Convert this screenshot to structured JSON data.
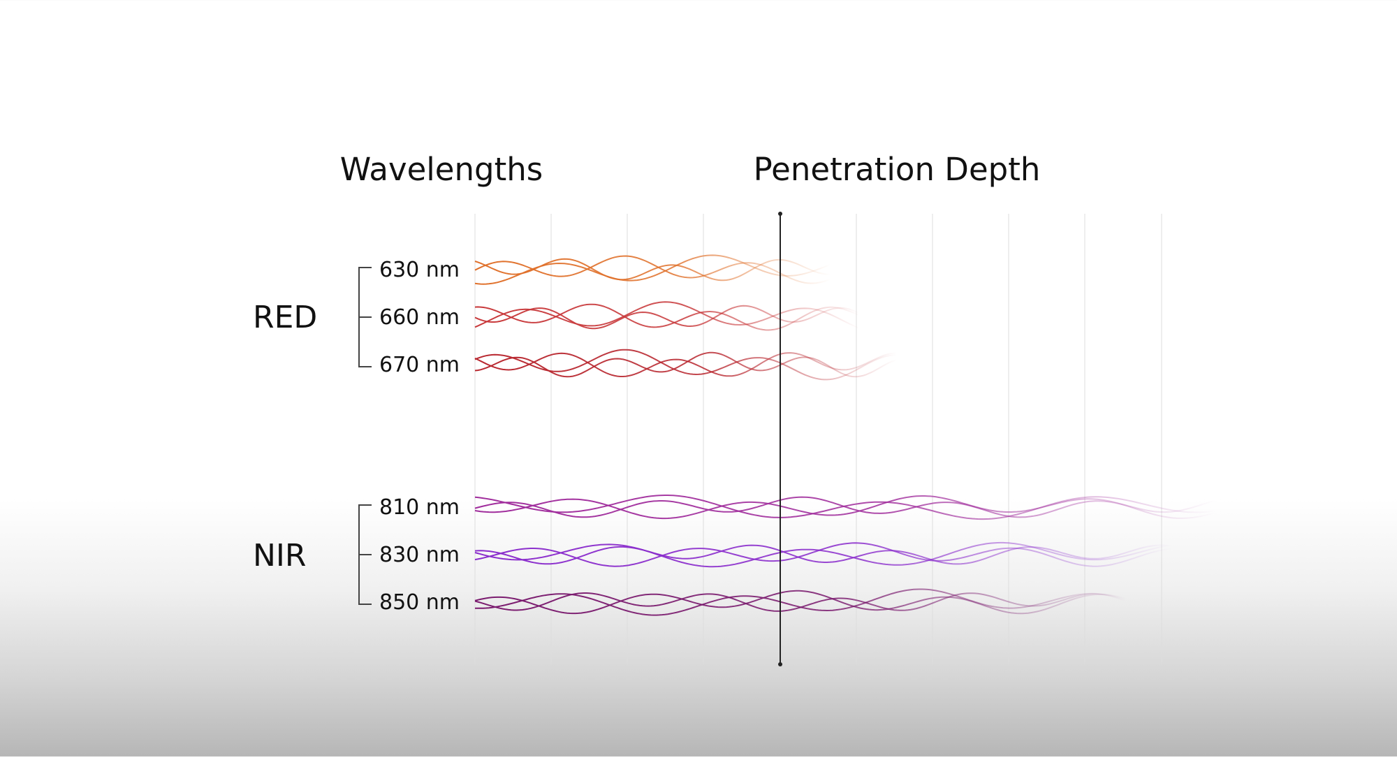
{
  "titles": {
    "wavelengths": "Wavelengths",
    "penetration": "Penetration Depth"
  },
  "groups": [
    {
      "name": "RED",
      "bands": [
        {
          "label": "630 nm",
          "color": "#e0702a",
          "fade_fraction": 0.48
        },
        {
          "label": "660 nm",
          "color": "#c8383a",
          "fade_fraction": 0.52
        },
        {
          "label": "670 nm",
          "color": "#b8262e",
          "fade_fraction": 0.57
        }
      ]
    },
    {
      "name": "NIR",
      "bands": [
        {
          "label": "810 nm",
          "color": "#a02c9c",
          "fade_fraction": 1.0
        },
        {
          "label": "830 nm",
          "color": "#8a2ccc",
          "fade_fraction": 0.94
        },
        {
          "label": "850 nm",
          "color": "#7a1a6e",
          "fade_fraction": 0.88
        }
      ]
    }
  ],
  "colors": {
    "text": "#111111",
    "grid": "#dddddd",
    "axis": "#222222",
    "bracket": "#444444"
  }
}
